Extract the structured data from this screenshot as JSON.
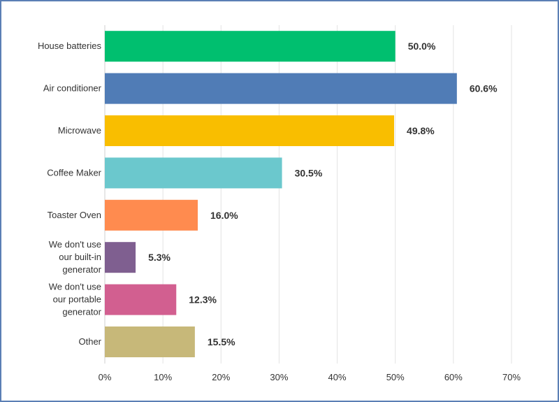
{
  "chart_data": {
    "type": "bar",
    "orientation": "horizontal",
    "title": "",
    "xlabel": "",
    "ylabel": "",
    "xlim": [
      0,
      70
    ],
    "grid": true,
    "legend": "none",
    "ticks": [
      0,
      10,
      20,
      30,
      40,
      50,
      60,
      70
    ],
    "tick_labels": [
      "0%",
      "10%",
      "20%",
      "30%",
      "40%",
      "50%",
      "60%",
      "70%"
    ],
    "categories": [
      [
        "House batteries"
      ],
      [
        "Air conditioner"
      ],
      [
        "Microwave"
      ],
      [
        "Coffee Maker"
      ],
      [
        "Toaster Oven"
      ],
      [
        "We don't use",
        "our built-in",
        "generator"
      ],
      [
        "We don't use",
        "our portable",
        "generator"
      ],
      [
        "Other"
      ]
    ],
    "values": [
      50.0,
      60.6,
      49.8,
      30.5,
      16.0,
      5.3,
      12.3,
      15.5
    ],
    "value_labels": [
      "50.0%",
      "60.6%",
      "49.8%",
      "30.5%",
      "16.0%",
      "5.3%",
      "12.3%",
      "15.5%"
    ],
    "colors": [
      "#00bf6f",
      "#507cb6",
      "#f9be00",
      "#6bc8cd",
      "#ff8b4f",
      "#7f5f90",
      "#d25f90",
      "#c7b879"
    ]
  }
}
